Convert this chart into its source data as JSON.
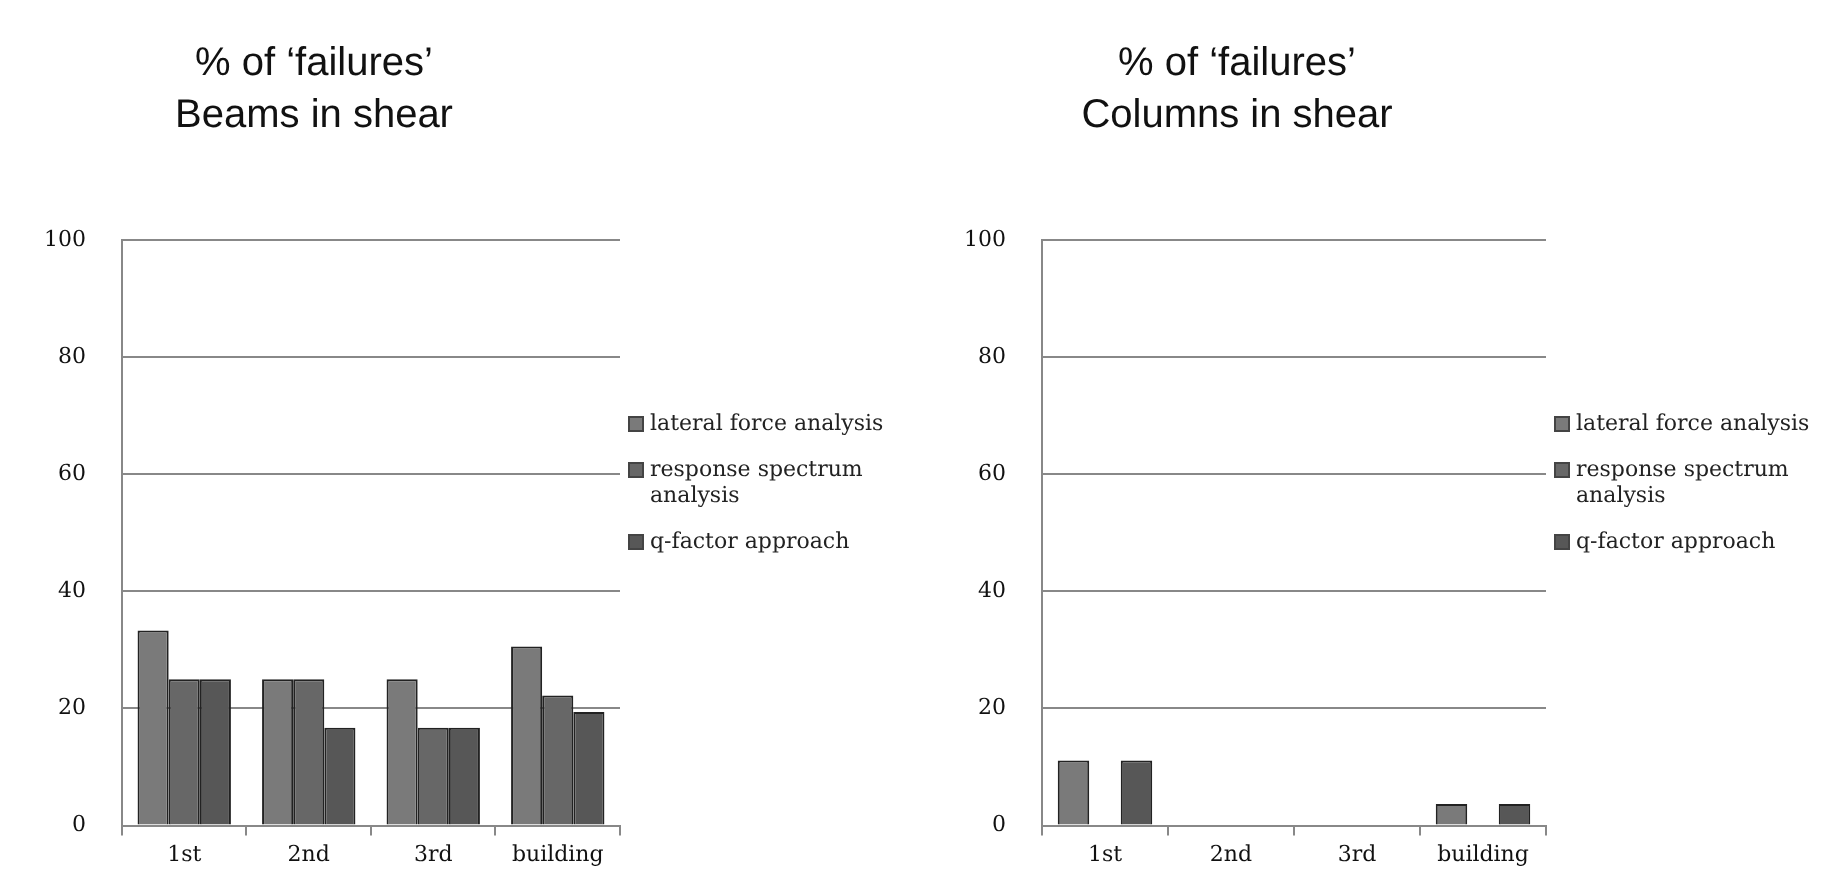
{
  "chart_data": [
    {
      "type": "bar",
      "title": "% of ‘failures’",
      "subtitle": "Beams in shear",
      "categories": [
        "1st",
        "2nd",
        "3rd",
        "building"
      ],
      "series": [
        {
          "name": "lateral force analysis",
          "color": "#7a7a7a",
          "values": [
            33.3,
            25,
            25,
            30.6
          ]
        },
        {
          "name": "response spectrum analysis",
          "color": "#676767",
          "values": [
            25,
            25,
            16.7,
            22.2
          ]
        },
        {
          "name": "q-factor approach",
          "color": "#575757",
          "values": [
            25,
            16.7,
            16.7,
            19.4
          ]
        }
      ],
      "ylim": [
        0,
        100
      ],
      "yticks": [
        0,
        20,
        40,
        60,
        80,
        100
      ],
      "grid": "y",
      "legend": "right"
    },
    {
      "type": "bar",
      "title": "% of ‘failures’",
      "subtitle": "Columns in shear",
      "categories": [
        "1st",
        "2nd",
        "3rd",
        "building"
      ],
      "series": [
        {
          "name": "lateral force analysis",
          "color": "#7a7a7a",
          "values": [
            11.1,
            0,
            0,
            3.7
          ]
        },
        {
          "name": "response spectrum analysis",
          "color": "#676767",
          "values": [
            0,
            0,
            0,
            0
          ]
        },
        {
          "name": "q-factor approach",
          "color": "#575757",
          "values": [
            11.1,
            0,
            0,
            3.7
          ]
        }
      ],
      "ylim": [
        0,
        100
      ],
      "yticks": [
        0,
        20,
        40,
        60,
        80,
        100
      ],
      "grid": "y",
      "legend": "right"
    }
  ]
}
